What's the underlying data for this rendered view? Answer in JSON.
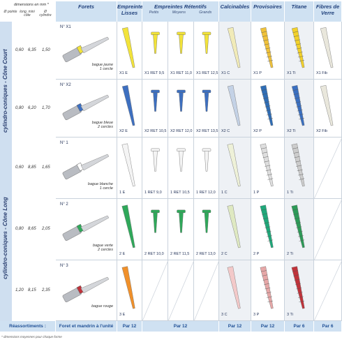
{
  "side_header": {
    "dim_title": "dimensions en mm *",
    "col1": "Ø pointe",
    "col2": "long. mini côte",
    "col3": "Ø cylindre"
  },
  "headers": {
    "forets": "Forets",
    "empreintes_lisses": "Empreintes Lisses",
    "empreintes_retentifs": "Empreintes Rétentifs",
    "petits": "Petits",
    "moyens": "Moyens",
    "grands": "Grands",
    "calcinables": "Calcinables",
    "provisoires": "Provisoires",
    "titane": "Titane",
    "fibres": "Fibres de Verre"
  },
  "bands": {
    "court": "cylindro-coniques - Cône Court",
    "long": "cylindro-coniques - Cône Long"
  },
  "rows": [
    {
      "dims": [
        "0,60",
        "6,35",
        "1,50"
      ],
      "num": "N° X1",
      "bague": "bague jaune",
      "cercles": "1 cercle",
      "labels": [
        "X1 E",
        "X1 RET 9,5",
        "X1 RET 11,0",
        "X1 RET 12,5",
        "X1 C",
        "X1 P",
        "X1 Ti",
        "X1 Fib"
      ]
    },
    {
      "dims": [
        "0,80",
        "6,20",
        "1,70"
      ],
      "num": "N° X2",
      "bague": "bague bleue",
      "cercles": "2 cercles",
      "labels": [
        "X2 E",
        "X2 RET 10,5",
        "X2 RET 12,0",
        "X2 RET 13,5",
        "X2 C",
        "X2 P",
        "X2 Ti",
        "X2 Fib"
      ]
    },
    {
      "dims": [
        "0,60",
        "8,85",
        "1,65"
      ],
      "num": "N° 1",
      "bague": "bague blanche",
      "cercles": "1 cercle",
      "labels": [
        "1 E",
        "1 RET 9,0",
        "1 RET 10,5",
        "1 RET 12,0",
        "1 C",
        "1 P",
        "1 Ti",
        ""
      ]
    },
    {
      "dims": [
        "0,80",
        "8,65",
        "2,05"
      ],
      "num": "N° 2",
      "bague": "bague verte",
      "cercles": "2 cercles",
      "labels": [
        "2 E",
        "2 RET 10,0",
        "2 RET 11,5",
        "2 RET 13,0",
        "2 C",
        "2 P",
        "2 Ti",
        ""
      ]
    },
    {
      "dims": [
        "1,20",
        "8,15",
        "2,35"
      ],
      "num": "N° 3",
      "bague": "bague rouge",
      "cercles": "",
      "labels": [
        "3 E",
        "",
        "",
        "",
        "3 C",
        "3 P",
        "3 Ti",
        ""
      ]
    }
  ],
  "footer": {
    "reassort": "Réassortiments :",
    "forets": "Foret et mandrin à l'unité",
    "lisses": "Par 12",
    "retentifs": "Par 12",
    "calcinables": "Par 12",
    "provisoires": "Par 12",
    "titane": "Par 6",
    "fibres": "Par 6"
  },
  "note": "* dimensions moyennes pour chaque forme",
  "colors": {
    "header_bg": "#cfe1f2",
    "yellow": "#f2e33a",
    "blue": "#3d6fc0",
    "white": "#f4f4f4",
    "green": "#2fa85a",
    "orange": "#f0902a",
    "red": "#c0323a"
  }
}
